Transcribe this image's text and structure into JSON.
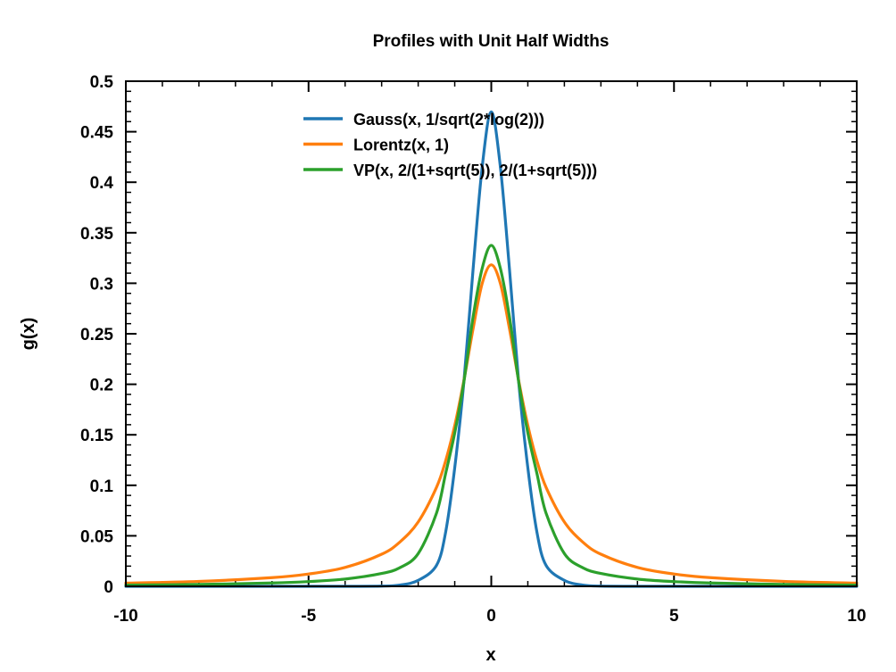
{
  "chart_data": {
    "type": "line",
    "title": "Profiles with Unit Half Widths",
    "xlabel": "x",
    "ylabel": "g(x)",
    "xlim": [
      -10,
      10
    ],
    "ylim": [
      0,
      0.5
    ],
    "grid": false,
    "legend_position": "top-center",
    "x_ticks": [
      -10,
      -5,
      0,
      5,
      10
    ],
    "x_tick_labels": [
      "-10",
      "-5",
      "0",
      "5",
      "10"
    ],
    "y_ticks": [
      0,
      0.05,
      0.1,
      0.15,
      0.2,
      0.25,
      0.3,
      0.35,
      0.4,
      0.45,
      0.5
    ],
    "y_tick_labels": [
      "0",
      "0.05",
      "0.1",
      "0.15",
      "0.2",
      "0.25",
      "0.3",
      "0.35",
      "0.4",
      "0.45",
      "0.5"
    ],
    "x": [
      -10,
      -8,
      -6,
      -5,
      -4,
      -3,
      -2.5,
      -2,
      -1.5,
      -1.25,
      -1,
      -0.75,
      -0.5,
      -0.25,
      0,
      0.25,
      0.5,
      0.75,
      1,
      1.25,
      1.5,
      2,
      2.5,
      3,
      4,
      5,
      6,
      8,
      10
    ],
    "series": [
      {
        "name": "Gauss(x, 1/sqrt(2*log(2)))",
        "color": "#1f77b4",
        "values": [
          0,
          0,
          0,
          0,
          0,
          0.0002,
          0.0013,
          0.0059,
          0.0207,
          0.0534,
          0.1174,
          0.2023,
          0.3129,
          0.4147,
          0.4697,
          0.4147,
          0.3129,
          0.2023,
          0.1174,
          0.0534,
          0.0207,
          0.0059,
          0.0013,
          0.0002,
          0,
          0,
          0,
          0,
          0
        ]
      },
      {
        "name": "Lorentz(x, 1)",
        "color": "#ff7f0e",
        "values": [
          0.0032,
          0.0049,
          0.0086,
          0.0122,
          0.0187,
          0.0318,
          0.0439,
          0.0637,
          0.0979,
          0.1242,
          0.1592,
          0.2037,
          0.2546,
          0.2996,
          0.3183,
          0.2996,
          0.2546,
          0.2037,
          0.1592,
          0.1242,
          0.0979,
          0.0637,
          0.0439,
          0.0318,
          0.0187,
          0.0122,
          0.0086,
          0.0049,
          0.0032
        ]
      },
      {
        "name": "VP(x, 2/(1+sqrt(5)), 2/(1+sqrt(5)))",
        "color": "#2ca02c",
        "values": [
          0.0012,
          0.0019,
          0.0033,
          0.0047,
          0.0072,
          0.0127,
          0.0185,
          0.0324,
          0.0723,
          0.1115,
          0.1519,
          0.2023,
          0.2661,
          0.3146,
          0.3375,
          0.3146,
          0.2661,
          0.2023,
          0.1519,
          0.1115,
          0.0723,
          0.0324,
          0.0185,
          0.0127,
          0.0072,
          0.0047,
          0.0033,
          0.0019,
          0.0012
        ]
      }
    ]
  }
}
